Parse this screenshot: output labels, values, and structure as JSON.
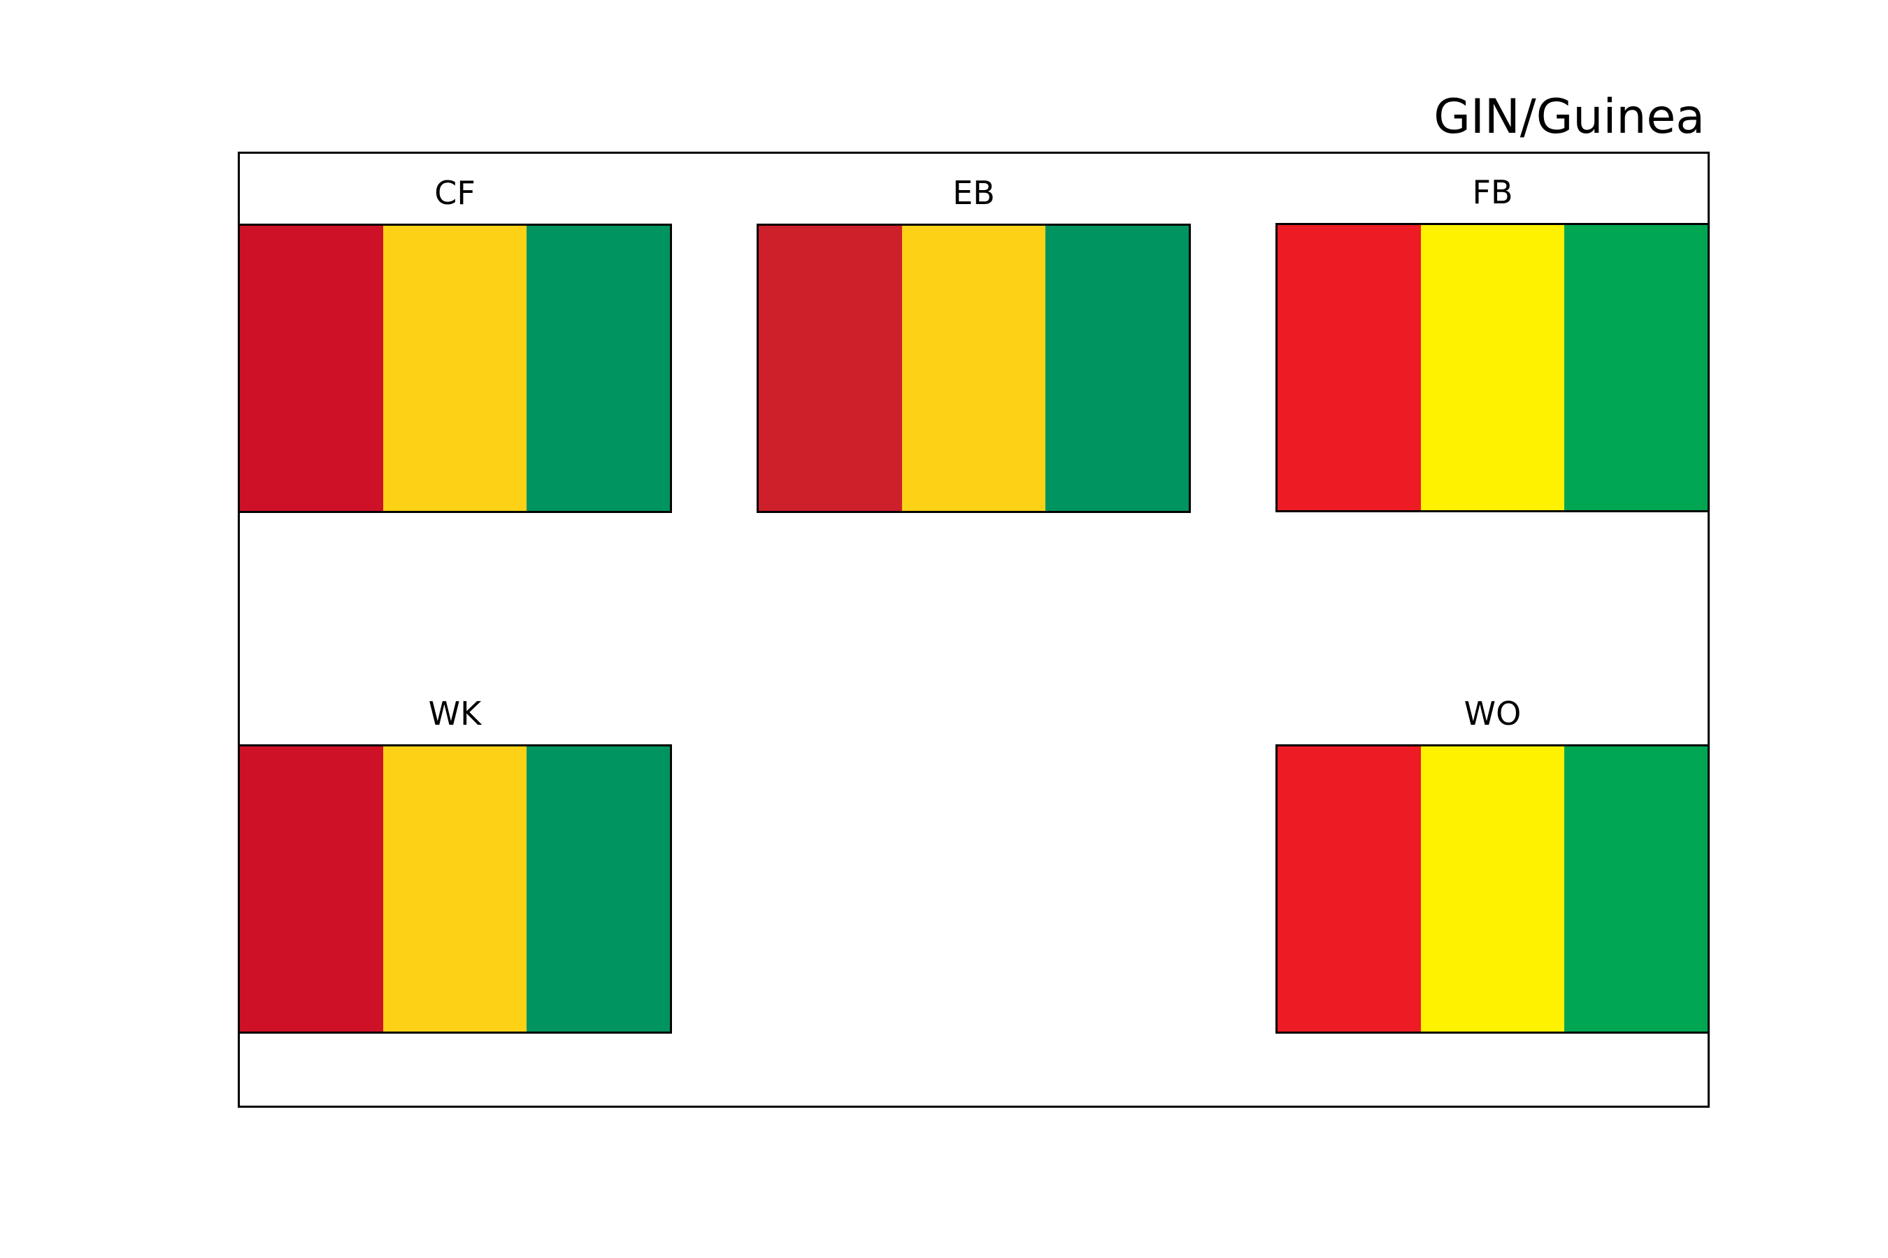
{
  "title": "GIN/Guinea",
  "flags": [
    {
      "label": "CF",
      "colors": [
        "#CE1126",
        "#FCD116",
        "#009460"
      ]
    },
    {
      "label": "EB",
      "colors": [
        "#CE202B",
        "#FCD116",
        "#009460"
      ]
    },
    {
      "label": "FB",
      "colors": [
        "#ED1C24",
        "#FFF200",
        "#00A651"
      ]
    },
    {
      "label": "WK",
      "colors": [
        "#CE1126",
        "#FCD116",
        "#009460"
      ]
    },
    {
      "label": "WO",
      "colors": [
        "#ED1C24",
        "#FFF200",
        "#00A651"
      ]
    }
  ]
}
